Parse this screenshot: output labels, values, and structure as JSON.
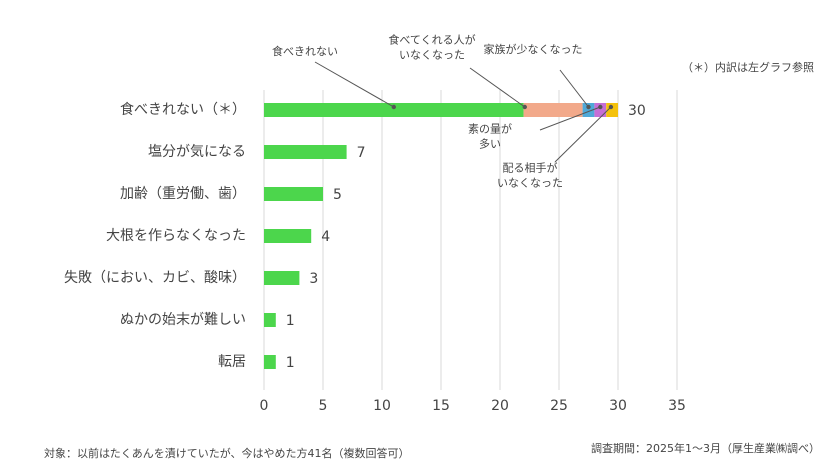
{
  "chart_data": {
    "type": "stacked-bar-horizontal",
    "note": "（＊）内訳は左グラフ参照",
    "footer": "対象：以前はたくあんを漬けていたが、今はやめた方41名（複数回答可）",
    "source": "調査期間：2025年1～3月（厚生産業㈱調べ）",
    "categories": [
      "食べきれない（＊）",
      "塩分が気になる",
      "加齢（重労働、歯）",
      "大根を作らなくなった",
      "失敗（におい、カビ、酸味）",
      "ぬかの始末が難しい",
      "転居"
    ],
    "series": [
      {
        "name": "食べきれない",
        "color": "#4cd64c",
        "values": [
          22,
          7,
          5,
          4,
          3,
          1,
          1
        ]
      },
      {
        "name": "食べてくれる人が\nいなくなった",
        "color": "#f2a98a",
        "values": [
          5,
          null,
          null,
          null,
          null,
          null,
          null
        ]
      },
      {
        "name": "家族が少なくなった",
        "color": "#4fa9d8",
        "values": [
          1,
          null,
          null,
          null,
          null,
          null,
          null
        ]
      },
      {
        "name": "素の量が\n多い",
        "color": "#c56ed6",
        "values": [
          1,
          null,
          null,
          null,
          null,
          null,
          null
        ]
      },
      {
        "name": "配る相手が\nいなくなった",
        "color": "#f4c20d",
        "values": [
          1,
          null,
          null,
          null,
          null,
          null,
          null
        ]
      }
    ],
    "totals": [
      30,
      7,
      5,
      4,
      3,
      1,
      1
    ],
    "xlim": [
      0,
      35
    ],
    "xticks": [
      0,
      5,
      10,
      15,
      20,
      25,
      30,
      35
    ],
    "grid": true
  }
}
